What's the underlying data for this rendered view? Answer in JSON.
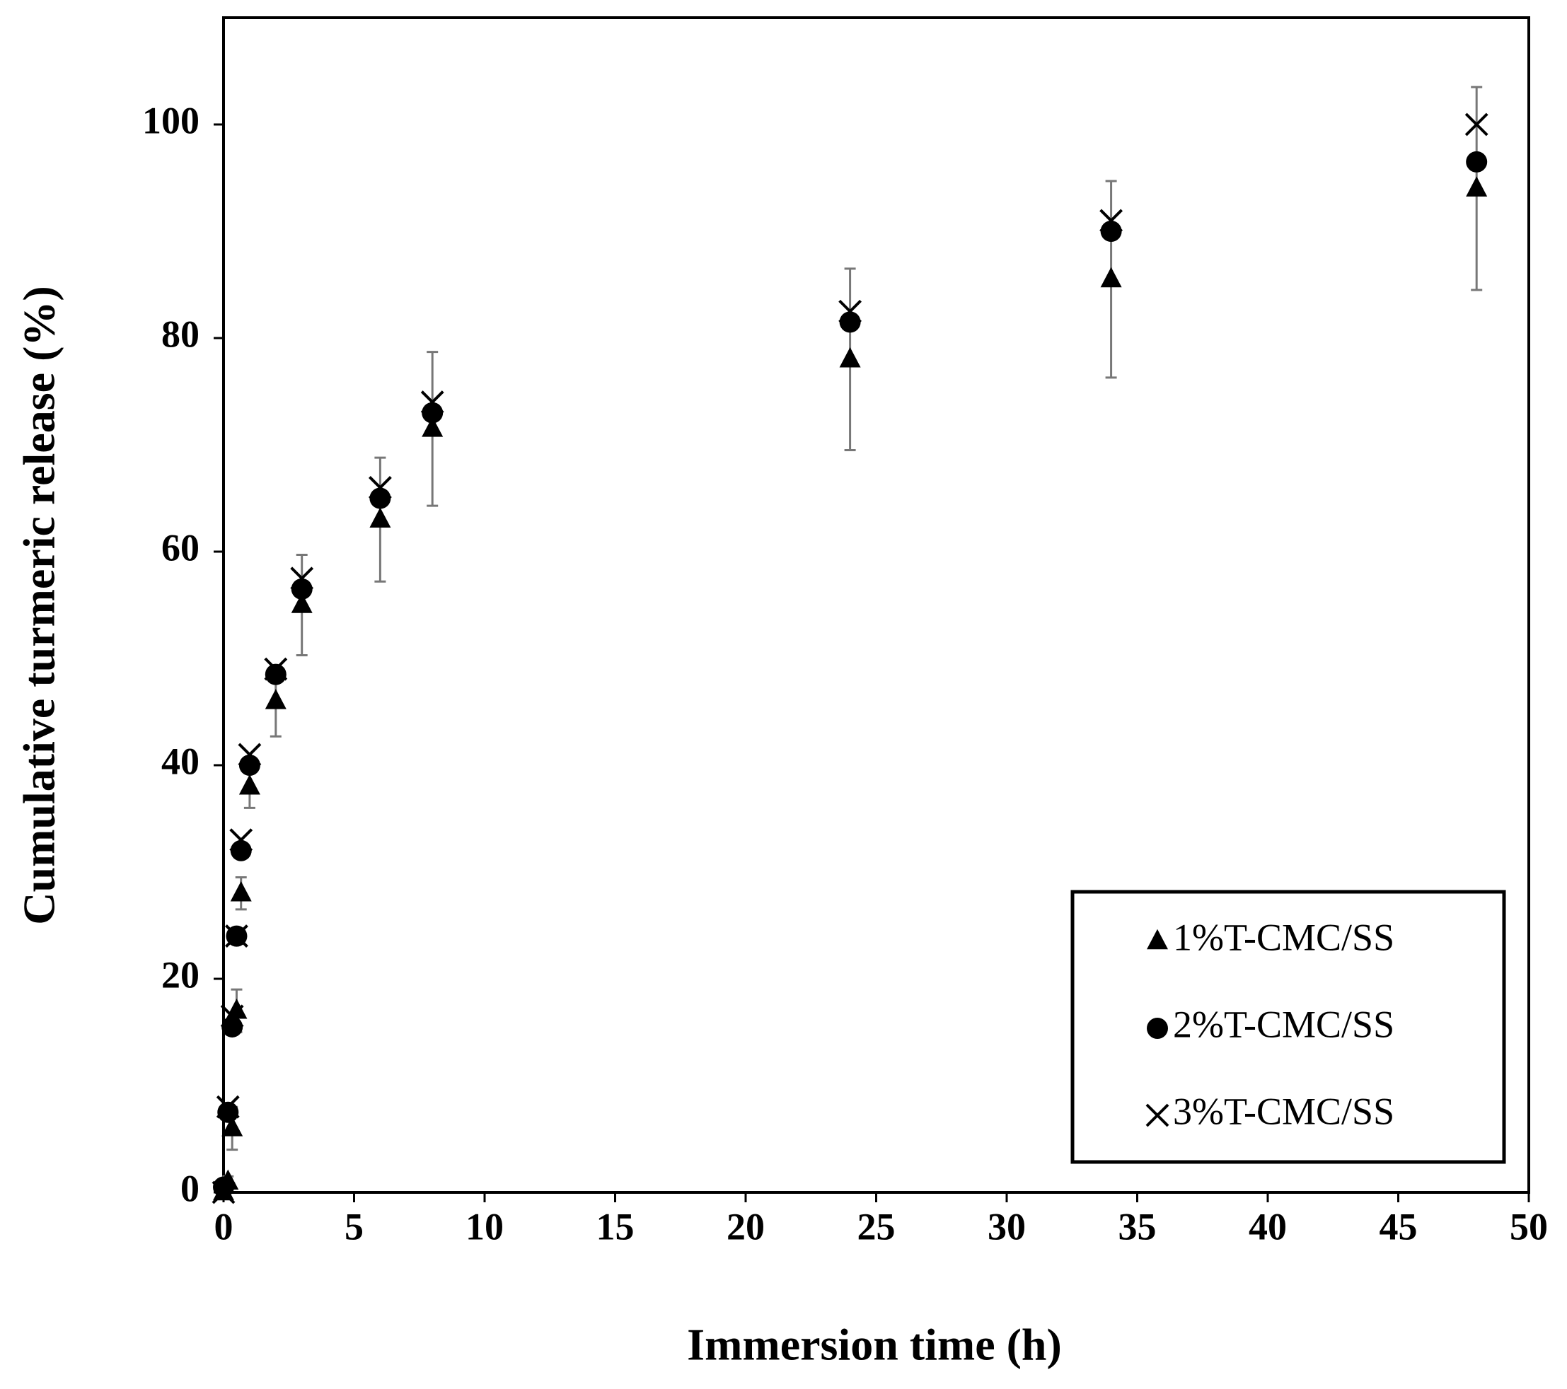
{
  "chart_data": {
    "type": "scatter",
    "x_label": "Immersion time (h)",
    "y_label": "Cumulative turmeric release (%)",
    "x": [
      0,
      0.17,
      0.33,
      0.5,
      0.67,
      1,
      2,
      3,
      6,
      8,
      24,
      34,
      48
    ],
    "series": [
      {
        "name": "1%T-CMC/SS",
        "marker": "triangle",
        "color": "#000000",
        "values": [
          0,
          1,
          6,
          17,
          28,
          38,
          46,
          55,
          63,
          71.5,
          78,
          85.5,
          94
        ],
        "errors": [
          0,
          0.5,
          2,
          2,
          1.5,
          2,
          3.3,
          4.7,
          5.8,
          7.2,
          8.5,
          9.2,
          9.5
        ]
      },
      {
        "name": "2%T-CMC/SS",
        "marker": "circle",
        "color": "#000000",
        "values": [
          0.5,
          7.5,
          15.5,
          24,
          32,
          40,
          48.5,
          56.5,
          65,
          73,
          81.5,
          90,
          96.5
        ]
      },
      {
        "name": "3%T-CMC/SS",
        "marker": "x",
        "color": "#000000",
        "values": [
          0,
          8,
          16.5,
          24,
          33,
          41,
          49,
          57.5,
          66,
          74,
          82.5,
          91,
          100
        ]
      }
    ],
    "error_color": "#777777",
    "xlim": [
      0,
      50
    ],
    "xticks": [
      0,
      5,
      10,
      15,
      20,
      25,
      30,
      35,
      40,
      45,
      50
    ],
    "ylim": [
      0,
      110
    ],
    "yticks": [
      0,
      20,
      40,
      60,
      80,
      100
    ],
    "grid": false,
    "legend": "lower right"
  }
}
